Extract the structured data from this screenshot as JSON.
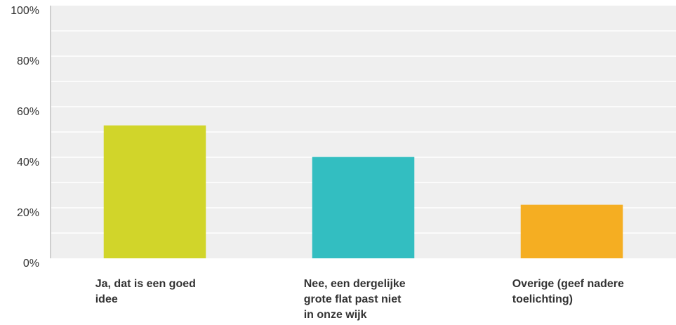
{
  "chart_data": {
    "type": "bar",
    "categories": [
      "Ja, dat is een goed idee",
      "Nee, een dergelijke grote flat past niet in onze wijk",
      "Overige (geef nadere toelichting)"
    ],
    "category_lines": [
      [
        "Ja, dat is een goed",
        "idee"
      ],
      [
        "Nee, een dergelijke",
        "grote flat past niet",
        "in onze wijk"
      ],
      [
        "Overige (geef nadere",
        "toelichting)"
      ]
    ],
    "values": [
      52.6,
      40.1,
      21.2
    ],
    "unit": "%",
    "ylim": [
      0,
      100
    ],
    "yticks": [
      "0%",
      "20%",
      "40%",
      "60%",
      "80%",
      "100%"
    ],
    "colors": [
      "#d1d52a",
      "#33bec1",
      "#f5ae22"
    ],
    "grid": true,
    "legend": "none",
    "title": "",
    "xlabel": "",
    "ylabel": ""
  }
}
